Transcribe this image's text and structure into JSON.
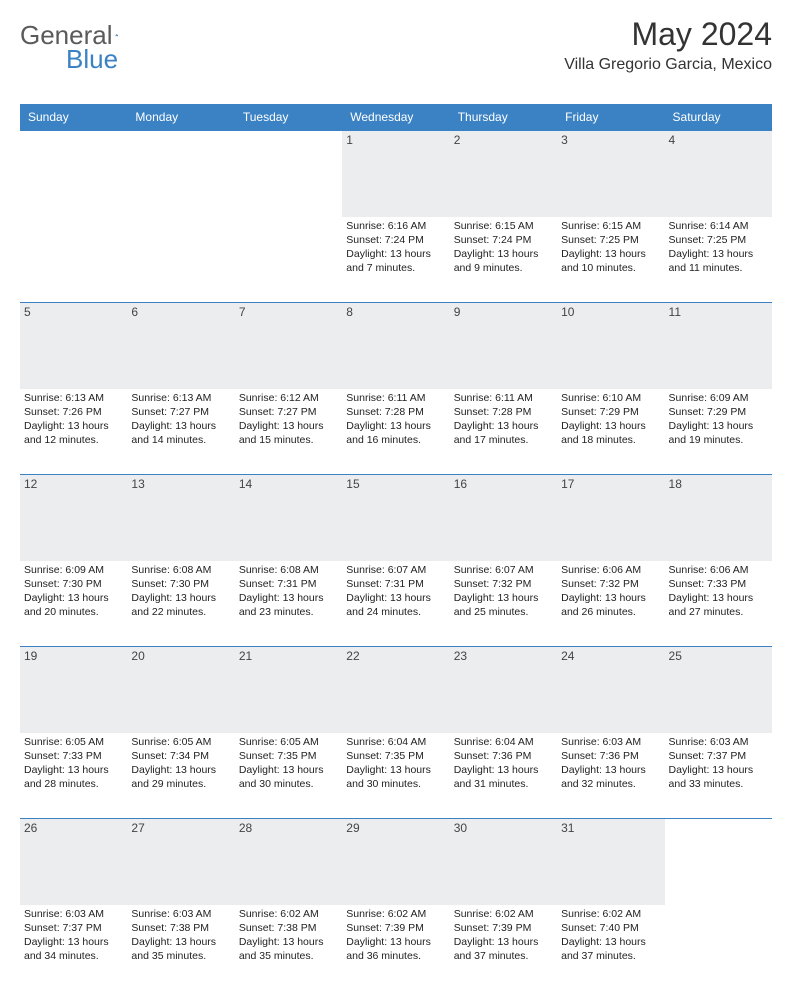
{
  "logo": {
    "text1": "General",
    "text2": "Blue"
  },
  "title": "May 2024",
  "location": "Villa Gregorio Garcia, Mexico",
  "colors": {
    "header_bg": "#3b82c4",
    "header_fg": "#ffffff",
    "daynum_bg": "#ebedef",
    "border": "#3b82c4",
    "logo_gray": "#5a5a5a",
    "logo_blue": "#3b82c4"
  },
  "weekdays": [
    "Sunday",
    "Monday",
    "Tuesday",
    "Wednesday",
    "Thursday",
    "Friday",
    "Saturday"
  ],
  "weeks": [
    [
      null,
      null,
      null,
      {
        "n": "1",
        "sr": "6:16 AM",
        "ss": "7:24 PM",
        "dl": "13 hours and 7 minutes."
      },
      {
        "n": "2",
        "sr": "6:15 AM",
        "ss": "7:24 PM",
        "dl": "13 hours and 9 minutes."
      },
      {
        "n": "3",
        "sr": "6:15 AM",
        "ss": "7:25 PM",
        "dl": "13 hours and 10 minutes."
      },
      {
        "n": "4",
        "sr": "6:14 AM",
        "ss": "7:25 PM",
        "dl": "13 hours and 11 minutes."
      }
    ],
    [
      {
        "n": "5",
        "sr": "6:13 AM",
        "ss": "7:26 PM",
        "dl": "13 hours and 12 minutes."
      },
      {
        "n": "6",
        "sr": "6:13 AM",
        "ss": "7:27 PM",
        "dl": "13 hours and 14 minutes."
      },
      {
        "n": "7",
        "sr": "6:12 AM",
        "ss": "7:27 PM",
        "dl": "13 hours and 15 minutes."
      },
      {
        "n": "8",
        "sr": "6:11 AM",
        "ss": "7:28 PM",
        "dl": "13 hours and 16 minutes."
      },
      {
        "n": "9",
        "sr": "6:11 AM",
        "ss": "7:28 PM",
        "dl": "13 hours and 17 minutes."
      },
      {
        "n": "10",
        "sr": "6:10 AM",
        "ss": "7:29 PM",
        "dl": "13 hours and 18 minutes."
      },
      {
        "n": "11",
        "sr": "6:09 AM",
        "ss": "7:29 PM",
        "dl": "13 hours and 19 minutes."
      }
    ],
    [
      {
        "n": "12",
        "sr": "6:09 AM",
        "ss": "7:30 PM",
        "dl": "13 hours and 20 minutes."
      },
      {
        "n": "13",
        "sr": "6:08 AM",
        "ss": "7:30 PM",
        "dl": "13 hours and 22 minutes."
      },
      {
        "n": "14",
        "sr": "6:08 AM",
        "ss": "7:31 PM",
        "dl": "13 hours and 23 minutes."
      },
      {
        "n": "15",
        "sr": "6:07 AM",
        "ss": "7:31 PM",
        "dl": "13 hours and 24 minutes."
      },
      {
        "n": "16",
        "sr": "6:07 AM",
        "ss": "7:32 PM",
        "dl": "13 hours and 25 minutes."
      },
      {
        "n": "17",
        "sr": "6:06 AM",
        "ss": "7:32 PM",
        "dl": "13 hours and 26 minutes."
      },
      {
        "n": "18",
        "sr": "6:06 AM",
        "ss": "7:33 PM",
        "dl": "13 hours and 27 minutes."
      }
    ],
    [
      {
        "n": "19",
        "sr": "6:05 AM",
        "ss": "7:33 PM",
        "dl": "13 hours and 28 minutes."
      },
      {
        "n": "20",
        "sr": "6:05 AM",
        "ss": "7:34 PM",
        "dl": "13 hours and 29 minutes."
      },
      {
        "n": "21",
        "sr": "6:05 AM",
        "ss": "7:35 PM",
        "dl": "13 hours and 30 minutes."
      },
      {
        "n": "22",
        "sr": "6:04 AM",
        "ss": "7:35 PM",
        "dl": "13 hours and 30 minutes."
      },
      {
        "n": "23",
        "sr": "6:04 AM",
        "ss": "7:36 PM",
        "dl": "13 hours and 31 minutes."
      },
      {
        "n": "24",
        "sr": "6:03 AM",
        "ss": "7:36 PM",
        "dl": "13 hours and 32 minutes."
      },
      {
        "n": "25",
        "sr": "6:03 AM",
        "ss": "7:37 PM",
        "dl": "13 hours and 33 minutes."
      }
    ],
    [
      {
        "n": "26",
        "sr": "6:03 AM",
        "ss": "7:37 PM",
        "dl": "13 hours and 34 minutes."
      },
      {
        "n": "27",
        "sr": "6:03 AM",
        "ss": "7:38 PM",
        "dl": "13 hours and 35 minutes."
      },
      {
        "n": "28",
        "sr": "6:02 AM",
        "ss": "7:38 PM",
        "dl": "13 hours and 35 minutes."
      },
      {
        "n": "29",
        "sr": "6:02 AM",
        "ss": "7:39 PM",
        "dl": "13 hours and 36 minutes."
      },
      {
        "n": "30",
        "sr": "6:02 AM",
        "ss": "7:39 PM",
        "dl": "13 hours and 37 minutes."
      },
      {
        "n": "31",
        "sr": "6:02 AM",
        "ss": "7:40 PM",
        "dl": "13 hours and 37 minutes."
      },
      null
    ]
  ],
  "labels": {
    "sunrise": "Sunrise:",
    "sunset": "Sunset:",
    "daylight": "Daylight:"
  }
}
